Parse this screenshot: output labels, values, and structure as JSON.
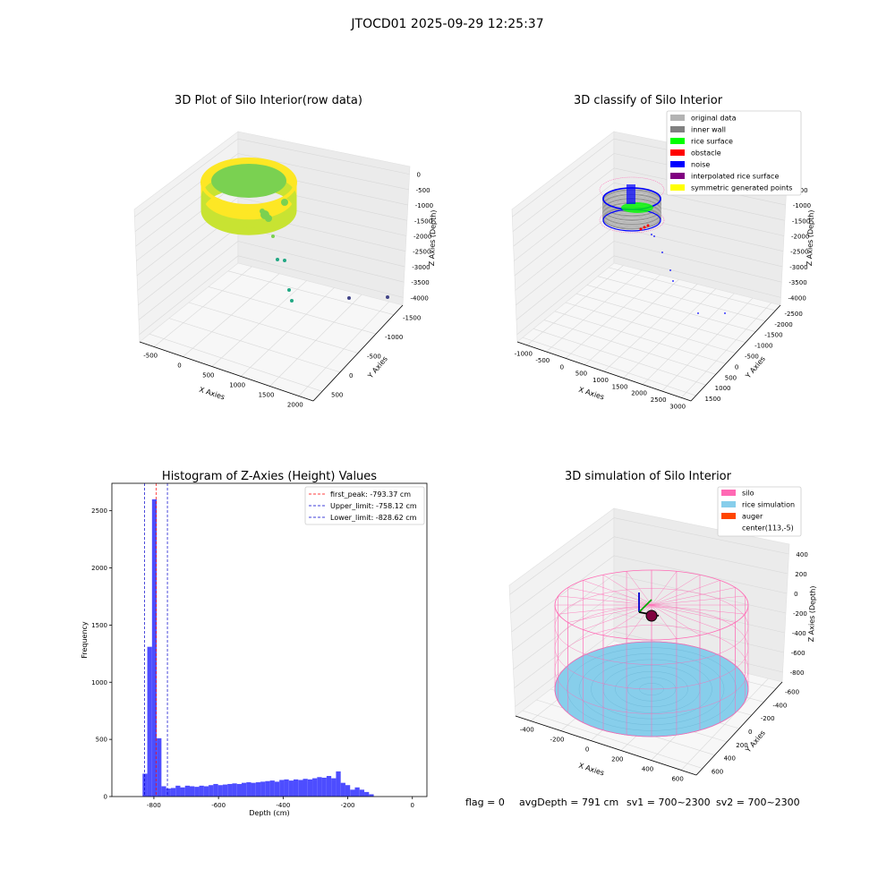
{
  "figure": {
    "suptitle": "JTOCD01 2025-09-29 12:25:37",
    "status": {
      "flag": "flag = 0",
      "avg_depth": "avgDepth = 791 cm",
      "sv1": "sv1 = 700~2300",
      "sv2": "sv2 = 700~2300"
    }
  },
  "chart_data": [
    {
      "type": "scatter",
      "title": "3D Plot of Silo Interior(row data)",
      "xlabel": "X Axies",
      "ylabel": "Y Axies",
      "zlabel": "Z Axies (Depth)",
      "x_ticks": [
        "-500",
        "0",
        "500",
        "1000",
        "1500",
        "2000"
      ],
      "y_ticks": [
        "-1500",
        "-1000",
        "-500",
        "0",
        "500"
      ],
      "z_ticks": [
        "0",
        "-500",
        "-1000",
        "-1500",
        "-2000",
        "-2500",
        "-3000",
        "-3500",
        "-4000"
      ],
      "xlim": [
        -600,
        2300
      ],
      "ylim": [
        -1500,
        700
      ],
      "zlim": [
        -4200,
        0
      ],
      "colormap": [
        "#fde725",
        "#7ad151",
        "#22a884",
        "#2a788e",
        "#414487"
      ],
      "grid": true
    },
    {
      "type": "scatter",
      "title": "3D classify of Silo Interior",
      "xlabel": "X Axies",
      "ylabel": "Y Axies",
      "zlabel": "Z Axies (Depth)",
      "x_ticks": [
        "-1000",
        "-500",
        "0",
        "500",
        "1000",
        "1500",
        "2000",
        "2500",
        "3000"
      ],
      "y_ticks": [
        "-2500",
        "-2000",
        "-1500",
        "-1000",
        "-500",
        "0",
        "500",
        "1000",
        "1500"
      ],
      "z_ticks": [
        "0",
        "-500",
        "-1000",
        "-1500",
        "-2000",
        "-2500",
        "-3000",
        "-3500",
        "-4000"
      ],
      "legend": [
        {
          "label": "original data",
          "color": "#b3b3b3"
        },
        {
          "label": "inner wall",
          "color": "#808080"
        },
        {
          "label": "rice surface",
          "color": "#00ff00"
        },
        {
          "label": "obstacle",
          "color": "#ff0000"
        },
        {
          "label": "noise",
          "color": "#0000ff"
        },
        {
          "label": "interpolated rice surface",
          "color": "#800080"
        },
        {
          "label": "symmetric generated points",
          "color": "#ffff00"
        }
      ],
      "legend_position": "top-right",
      "grid": true
    },
    {
      "type": "bar",
      "title": "Histogram of Z-Axies (Height) Values",
      "xlabel": "Depth (cm)",
      "ylabel": "Frequency",
      "xlim": [
        -930,
        45
      ],
      "ylim": [
        0,
        2740
      ],
      "x_ticks": [
        -800,
        -600,
        -400,
        -200,
        0
      ],
      "y_ticks": [
        0,
        500,
        1000,
        1500,
        2000,
        2500
      ],
      "bin_width": 14.6,
      "bins_start": -835,
      "values": [
        200,
        1310,
        2600,
        510,
        90,
        70,
        75,
        95,
        80,
        95,
        90,
        85,
        95,
        90,
        100,
        110,
        100,
        105,
        110,
        115,
        110,
        120,
        125,
        120,
        125,
        130,
        135,
        140,
        130,
        145,
        150,
        140,
        150,
        145,
        155,
        150,
        160,
        170,
        165,
        180,
        160,
        220,
        120,
        100,
        60,
        80,
        60,
        40,
        20
      ],
      "bar_color": "#4d4dff",
      "lines": [
        {
          "label": "first_peak: -793.37 cm",
          "x": -793.37,
          "color": "#ff0000"
        },
        {
          "label": "Upper_limit: -758.12 cm",
          "x": -758.12,
          "color": "#0000cc"
        },
        {
          "label": "Lower_limit: -828.62 cm",
          "x": -828.62,
          "color": "#0000cc"
        }
      ],
      "legend_position": "top-right"
    },
    {
      "type": "scatter",
      "title": "3D simulation of Silo Interior",
      "xlabel": "X Axies",
      "ylabel": "Y Axies",
      "zlabel": "Z Axies (Depth)",
      "x_ticks": [
        "-400",
        "-200",
        "0",
        "200",
        "400",
        "600"
      ],
      "y_ticks": [
        "-600",
        "-400",
        "-200",
        "0",
        "200",
        "400",
        "600"
      ],
      "z_ticks": [
        "400",
        "200",
        "0",
        "-200",
        "-400",
        "-600",
        "-800"
      ],
      "legend": [
        {
          "label": "silo",
          "color": "#ff69b4"
        },
        {
          "label": "rice simulation",
          "color": "#87ceeb"
        },
        {
          "label": "auger",
          "color": "#ff4500"
        },
        {
          "label": "center(113,-5)",
          "color": ""
        }
      ],
      "legend_position": "top-right",
      "grid": true
    }
  ]
}
